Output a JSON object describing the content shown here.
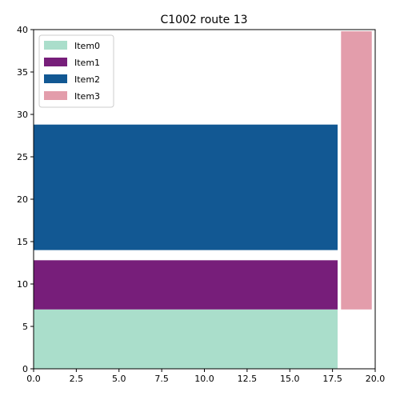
{
  "chart_data": {
    "type": "bar",
    "title": "C1002 route 13",
    "xlabel": "",
    "ylabel": "",
    "xlim": [
      0,
      20
    ],
    "ylim": [
      0,
      40
    ],
    "xticks": [
      "0.0",
      "2.5",
      "5.0",
      "7.5",
      "10.0",
      "12.5",
      "15.0",
      "17.5",
      "20.0"
    ],
    "yticks": [
      "0",
      "5",
      "10",
      "15",
      "20",
      "25",
      "30",
      "35",
      "40"
    ],
    "grid": false,
    "legend_position": "top-left",
    "series": [
      {
        "name": "Item0",
        "color": "#aadecb",
        "rect": {
          "x0": 0,
          "x1": 17.8,
          "y0": 0,
          "y1": 7
        }
      },
      {
        "name": "Item1",
        "color": "#771e7a",
        "rect": {
          "x0": 0,
          "x1": 17.8,
          "y0": 7,
          "y1": 12.8
        }
      },
      {
        "name": "Item2",
        "color": "#125893",
        "rect": {
          "x0": 0,
          "x1": 17.8,
          "y0": 14,
          "y1": 28.8
        }
      },
      {
        "name": "Item3",
        "color": "#e39dab",
        "rect": {
          "x0": 18.0,
          "x1": 19.8,
          "y0": 7,
          "y1": 39.8
        }
      }
    ]
  }
}
